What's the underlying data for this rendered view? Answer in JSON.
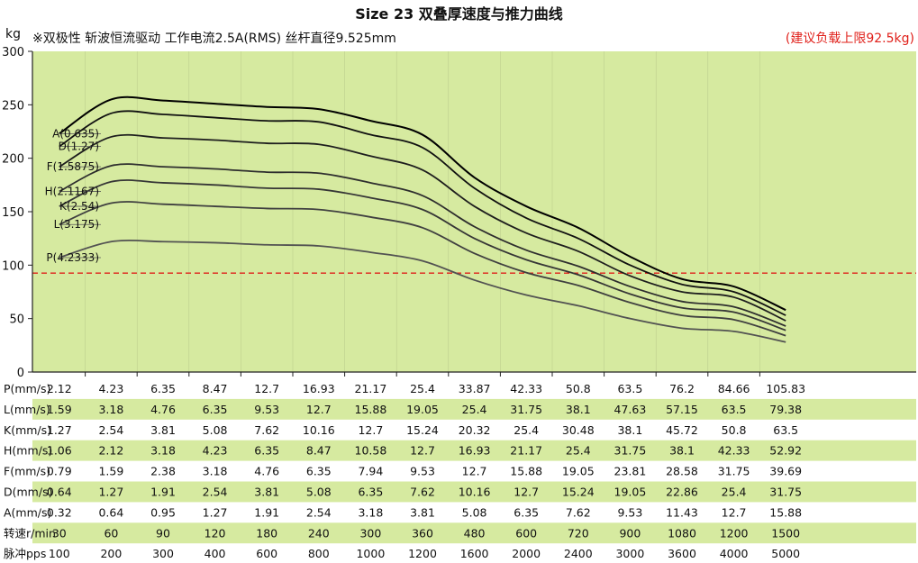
{
  "title": "Size 23 双叠厚速度与推力曲线",
  "y_unit": "kg",
  "subtitle": "※双极性 斩波恒流驱动 工作电流2.5A(RMS) 丝杆直径9.525mm",
  "limit_note": "(建议负载上限92.5kg)",
  "colors": {
    "plot_bg": "#d6eaa0",
    "band": "#d6eaa0",
    "limit_line": "#e0201a"
  },
  "chart_data": {
    "type": "line",
    "x_label": "脉冲pps",
    "x": [
      100,
      200,
      300,
      400,
      600,
      800,
      1000,
      1200,
      1600,
      2000,
      2400,
      3000,
      3600,
      4000,
      5000
    ],
    "ylabel": "kg",
    "ylim": [
      0,
      300
    ],
    "yticks": [
      0,
      50,
      100,
      150,
      200,
      250,
      300
    ],
    "limit_value": 92.5,
    "series": [
      {
        "name": "A(0.635)",
        "values": [
          223,
          255,
          254,
          251,
          248,
          246,
          235,
          222,
          182,
          155,
          135,
          108,
          87,
          80,
          58
        ]
      },
      {
        "name": "D(1.27)",
        "values": [
          211,
          242,
          241,
          238,
          235,
          234,
          222,
          210,
          172,
          144,
          125,
          100,
          82,
          75,
          53
        ]
      },
      {
        "name": "F(1.5875)",
        "values": [
          192,
          220,
          219,
          217,
          214,
          213,
          202,
          189,
          155,
          130,
          113,
          90,
          75,
          70,
          48
        ]
      },
      {
        "name": "H(2.1167)",
        "values": [
          169,
          193,
          192,
          190,
          187,
          186,
          177,
          165,
          136,
          114,
          99,
          80,
          66,
          61,
          43
        ]
      },
      {
        "name": "K(2.54)",
        "values": [
          155,
          178,
          177,
          175,
          172,
          171,
          163,
          152,
          125,
          105,
          91,
          73,
          60,
          56,
          39
        ]
      },
      {
        "name": "L(3.175)",
        "values": [
          138,
          158,
          157,
          155,
          153,
          152,
          145,
          135,
          111,
          93,
          81,
          65,
          53,
          49,
          34
        ]
      },
      {
        "name": "P(4.2333)",
        "values": [
          107,
          122,
          122,
          121,
          119,
          118,
          112,
          104,
          86,
          72,
          62,
          50,
          41,
          38,
          28
        ]
      }
    ]
  },
  "table": {
    "rows": [
      {
        "label": "P(mm/s)",
        "values": [
          "2.12",
          "4.23",
          "6.35",
          "8.47",
          "12.7",
          "16.93",
          "21.17",
          "25.4",
          "33.87",
          "42.33",
          "50.8",
          "63.5",
          "76.2",
          "84.66",
          "105.83"
        ]
      },
      {
        "label": "L(mm/s)",
        "values": [
          "1.59",
          "3.18",
          "4.76",
          "6.35",
          "9.53",
          "12.7",
          "15.88",
          "19.05",
          "25.4",
          "31.75",
          "38.1",
          "47.63",
          "57.15",
          "63.5",
          "79.38"
        ]
      },
      {
        "label": "K(mm/s)",
        "values": [
          "1.27",
          "2.54",
          "3.81",
          "5.08",
          "7.62",
          "10.16",
          "12.7",
          "15.24",
          "20.32",
          "25.4",
          "30.48",
          "38.1",
          "45.72",
          "50.8",
          "63.5"
        ]
      },
      {
        "label": "H(mm/s)",
        "values": [
          "1.06",
          "2.12",
          "3.18",
          "4.23",
          "6.35",
          "8.47",
          "10.58",
          "12.7",
          "16.93",
          "21.17",
          "25.4",
          "31.75",
          "38.1",
          "42.33",
          "52.92"
        ]
      },
      {
        "label": "F(mm/s)",
        "values": [
          "0.79",
          "1.59",
          "2.38",
          "3.18",
          "4.76",
          "6.35",
          "7.94",
          "9.53",
          "12.7",
          "15.88",
          "19.05",
          "23.81",
          "28.58",
          "31.75",
          "39.69"
        ]
      },
      {
        "label": "D(mm/s)",
        "values": [
          "0.64",
          "1.27",
          "1.91",
          "2.54",
          "3.81",
          "5.08",
          "6.35",
          "7.62",
          "10.16",
          "12.7",
          "15.24",
          "19.05",
          "22.86",
          "25.4",
          "31.75"
        ]
      },
      {
        "label": "A(mm/s)",
        "values": [
          "0.32",
          "0.64",
          "0.95",
          "1.27",
          "1.91",
          "2.54",
          "3.18",
          "3.81",
          "5.08",
          "6.35",
          "7.62",
          "9.53",
          "11.43",
          "12.7",
          "15.88"
        ]
      },
      {
        "label": "转速r/min",
        "values": [
          "30",
          "60",
          "90",
          "120",
          "180",
          "240",
          "300",
          "360",
          "480",
          "600",
          "720",
          "900",
          "1080",
          "1200",
          "1500"
        ]
      },
      {
        "label": "脉冲pps",
        "values": [
          "100",
          "200",
          "300",
          "400",
          "600",
          "800",
          "1000",
          "1200",
          "1600",
          "2000",
          "2400",
          "3000",
          "3600",
          "4000",
          "5000"
        ]
      }
    ]
  }
}
